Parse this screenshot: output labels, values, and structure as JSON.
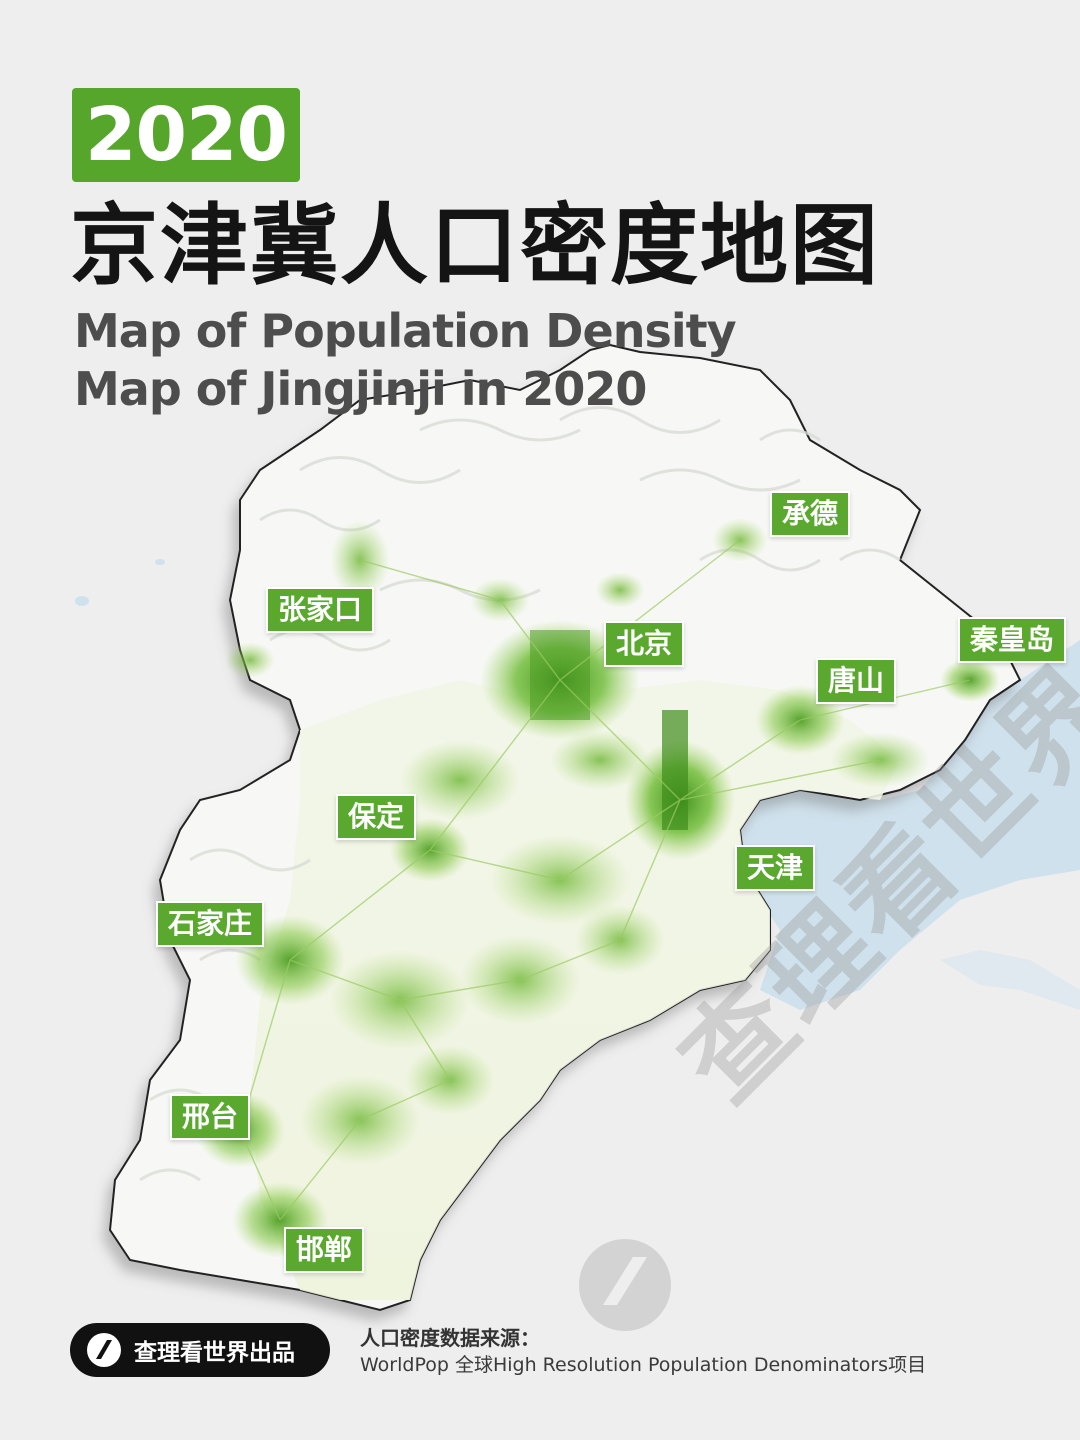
{
  "header": {
    "year": "2020",
    "title_cn": "京津冀人口密度地图",
    "title_en": "Map of Population Density Map of Jingjinji in 2020"
  },
  "cities": [
    {
      "id": "chengde",
      "label": "承德"
    },
    {
      "id": "zhangjiakou",
      "label": "张家口"
    },
    {
      "id": "beijing",
      "label": "北京"
    },
    {
      "id": "qinhuangdao",
      "label": "秦皇岛"
    },
    {
      "id": "tangshan",
      "label": "唐山"
    },
    {
      "id": "baoding",
      "label": "保定"
    },
    {
      "id": "tianjin",
      "label": "天津"
    },
    {
      "id": "shijiazhuang",
      "label": "石家庄"
    },
    {
      "id": "xingtai",
      "label": "邢台"
    },
    {
      "id": "handan",
      "label": "邯郸"
    }
  ],
  "watermark": "查理看世界",
  "footer": {
    "brand": "查理看世界出品",
    "source_title": "人口密度数据来源：",
    "source_text": "WorldPop 全球High Resolution Population Denominators项目"
  },
  "colors": {
    "accent_green": "#56a62b",
    "sea": "#cfe1ec",
    "terrain": "#f7f8f5",
    "background": "#eeeeee"
  }
}
